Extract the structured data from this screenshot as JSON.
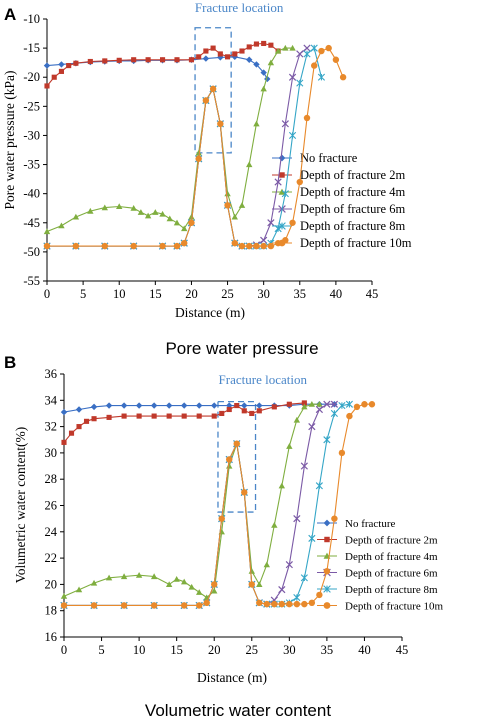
{
  "chart_data": [
    {
      "panel": "A",
      "type": "scatter",
      "caption": "Pore water pressure",
      "xlabel": "Distance (m)",
      "ylabel": "Pore water pressure (kPa)",
      "xlim": [
        0,
        45
      ],
      "ylim": [
        -55,
        -10
      ],
      "xticks": [
        0,
        5,
        10,
        15,
        20,
        25,
        30,
        35,
        40,
        45
      ],
      "yticks": [
        -10,
        -15,
        -20,
        -25,
        -30,
        -35,
        -40,
        -45,
        -50,
        -55
      ],
      "annotation": {
        "text": "Fracture location",
        "box_x": [
          20.5,
          25.5
        ],
        "box_y": [
          -11.5,
          -33
        ]
      },
      "legend_position": "right",
      "series": [
        {
          "name": "No fracture",
          "color": "#3a6fc4",
          "marker": "diamond",
          "x": [
            0,
            2,
            4,
            6,
            8,
            10,
            12,
            14,
            16,
            18,
            20,
            22,
            24,
            26,
            28,
            29,
            30,
            30.5
          ],
          "y": [
            -18,
            -17.8,
            -17.6,
            -17.4,
            -17.3,
            -17.2,
            -17.2,
            -17.1,
            -17.1,
            -17.1,
            -17.0,
            -16.8,
            -16.6,
            -16.5,
            -17.0,
            -17.8,
            -19.2,
            -20.3
          ]
        },
        {
          "name": "Depth of fracture 2m",
          "color": "#c0392b",
          "marker": "square",
          "x": [
            0,
            1,
            2,
            3,
            4,
            6,
            8,
            10,
            12,
            14,
            16,
            18,
            20,
            21,
            22,
            23,
            24,
            25,
            26,
            27,
            28,
            29,
            30,
            31,
            32
          ],
          "y": [
            -21.5,
            -20,
            -19,
            -18,
            -17.6,
            -17.3,
            -17.2,
            -17.1,
            -17.0,
            -17.0,
            -17.0,
            -17.0,
            -17.0,
            -16.5,
            -15.5,
            -15.0,
            -16.0,
            -16.5,
            -16.0,
            -15.5,
            -14.8,
            -14.3,
            -14.2,
            -14.5,
            -15.5
          ]
        },
        {
          "name": "Depth of fracture 4m",
          "color": "#7fae3f",
          "marker": "triangle",
          "x": [
            0,
            2,
            4,
            6,
            8,
            10,
            12,
            13,
            14,
            15,
            16,
            17,
            18,
            19,
            20,
            21,
            22,
            23,
            24,
            25,
            26,
            27,
            28,
            29,
            30,
            31,
            32,
            33,
            34
          ],
          "y": [
            -46.5,
            -45.5,
            -44,
            -43,
            -42.4,
            -42.2,
            -42.5,
            -43.2,
            -43.8,
            -43.2,
            -43.5,
            -44.3,
            -45,
            -46,
            -44,
            -33,
            -24,
            -22,
            -28,
            -40,
            -44,
            -42,
            -35,
            -28,
            -22,
            -17.5,
            -15.5,
            -15,
            -15
          ]
        },
        {
          "name": "Depth of fracture 6m",
          "color": "#7b5aa6",
          "marker": "x",
          "x": [
            0,
            4,
            8,
            12,
            16,
            18,
            19,
            20,
            21,
            22,
            23,
            24,
            25,
            26,
            27,
            28,
            29,
            30,
            31,
            32,
            33,
            34,
            35,
            36
          ],
          "y": [
            -49,
            -49,
            -49,
            -49,
            -49,
            -49,
            -48.5,
            -45,
            -34,
            -24,
            -22,
            -28,
            -42,
            -48.5,
            -49,
            -49,
            -48.8,
            -48,
            -45,
            -38,
            -28,
            -20,
            -16,
            -15
          ]
        },
        {
          "name": "Depth of fracture 8m",
          "color": "#35a6c7",
          "marker": "star",
          "x": [
            0,
            4,
            8,
            12,
            16,
            18,
            19,
            20,
            21,
            22,
            23,
            24,
            25,
            26,
            27,
            28,
            29,
            30,
            31,
            32,
            33,
            34,
            35,
            36,
            37,
            38
          ],
          "y": [
            -49,
            -49,
            -49,
            -49,
            -49,
            -49,
            -48.5,
            -45,
            -34,
            -24,
            -22,
            -28,
            -42,
            -48.5,
            -49,
            -49,
            -49,
            -49,
            -48.5,
            -46,
            -40,
            -30,
            -21,
            -16,
            -15,
            -20
          ]
        },
        {
          "name": "Depth of fracture 10m",
          "color": "#e8892b",
          "marker": "circle",
          "x": [
            0,
            4,
            8,
            12,
            16,
            18,
            19,
            20,
            21,
            22,
            23,
            24,
            25,
            26,
            27,
            28,
            29,
            30,
            31,
            32,
            33,
            34,
            35,
            36,
            37,
            38,
            39,
            40,
            41
          ],
          "y": [
            -49,
            -49,
            -49,
            -49,
            -49,
            -49,
            -48.5,
            -45,
            -34,
            -24,
            -22,
            -28,
            -42,
            -48.5,
            -49,
            -49,
            -49,
            -49,
            -49,
            -48.5,
            -48,
            -45,
            -38,
            -27,
            -18,
            -15.5,
            -15,
            -17,
            -20
          ]
        }
      ]
    },
    {
      "panel": "B",
      "type": "scatter",
      "caption": "Volumetric water content",
      "xlabel": "Distance (m)",
      "ylabel": "Volumetric water content(%)",
      "xlim": [
        0,
        45
      ],
      "ylim": [
        16,
        36
      ],
      "xticks": [
        0,
        5,
        10,
        15,
        20,
        25,
        30,
        35,
        40,
        45
      ],
      "yticks": [
        36,
        34,
        32,
        30,
        28,
        26,
        24,
        22,
        20,
        18,
        16
      ],
      "annotation": {
        "text": "Fracture location",
        "box_x": [
          20.5,
          25.5
        ],
        "box_y": [
          33.9,
          25.5
        ]
      },
      "legend_position": "right",
      "series": [
        {
          "name": "No fracture",
          "color": "#3a6fc4",
          "marker": "diamond",
          "x": [
            0,
            2,
            4,
            6,
            8,
            10,
            12,
            14,
            16,
            18,
            20,
            22,
            24,
            26,
            28,
            30,
            32,
            34,
            36
          ],
          "y": [
            33.1,
            33.3,
            33.5,
            33.6,
            33.6,
            33.6,
            33.6,
            33.6,
            33.6,
            33.6,
            33.6,
            33.6,
            33.6,
            33.6,
            33.6,
            33.6,
            33.7,
            33.7,
            33.7
          ]
        },
        {
          "name": "Depth of fracture 2m",
          "color": "#c0392b",
          "marker": "square",
          "x": [
            0,
            1,
            2,
            3,
            4,
            6,
            8,
            10,
            12,
            14,
            16,
            18,
            20,
            21,
            22,
            23,
            24,
            25,
            26,
            28,
            30,
            32
          ],
          "y": [
            30.8,
            31.5,
            32.0,
            32.4,
            32.6,
            32.7,
            32.8,
            32.8,
            32.8,
            32.8,
            32.8,
            32.8,
            32.8,
            33.0,
            33.3,
            33.6,
            33.2,
            33.0,
            33.2,
            33.5,
            33.7,
            33.8
          ]
        },
        {
          "name": "Depth of fracture 4m",
          "color": "#7fae3f",
          "marker": "triangle",
          "x": [
            0,
            2,
            4,
            6,
            8,
            10,
            12,
            14,
            15,
            16,
            17,
            18,
            19,
            20,
            21,
            22,
            23,
            24,
            25,
            26,
            27,
            28,
            29,
            30,
            31,
            32,
            33,
            34
          ],
          "y": [
            19.1,
            19.6,
            20.1,
            20.5,
            20.6,
            20.7,
            20.6,
            20.0,
            20.4,
            20.2,
            19.8,
            19.4,
            19.0,
            19.5,
            24,
            29,
            30.7,
            27,
            21,
            20,
            21.5,
            24.5,
            27.5,
            30.5,
            32.5,
            33.5,
            33.7,
            33.7
          ]
        },
        {
          "name": "Depth of fracture 6m",
          "color": "#7b5aa6",
          "marker": "x",
          "x": [
            0,
            4,
            8,
            12,
            16,
            18,
            19,
            20,
            21,
            22,
            23,
            24,
            25,
            26,
            27,
            28,
            29,
            30,
            31,
            32,
            33,
            34,
            35,
            36
          ],
          "y": [
            18.4,
            18.4,
            18.4,
            18.4,
            18.4,
            18.4,
            18.6,
            20,
            25,
            29.5,
            30.7,
            27,
            20,
            18.6,
            18.5,
            18.8,
            19.6,
            21.5,
            25,
            29,
            32,
            33.3,
            33.7,
            33.7
          ]
        },
        {
          "name": "Depth of fracture 8m",
          "color": "#35a6c7",
          "marker": "star",
          "x": [
            0,
            4,
            8,
            12,
            16,
            18,
            19,
            20,
            21,
            22,
            23,
            24,
            25,
            26,
            27,
            28,
            29,
            30,
            31,
            32,
            33,
            34,
            35,
            36,
            37,
            38
          ],
          "y": [
            18.4,
            18.4,
            18.4,
            18.4,
            18.4,
            18.4,
            18.6,
            20,
            25,
            29.5,
            30.7,
            27,
            20,
            18.6,
            18.5,
            18.5,
            18.5,
            18.6,
            19,
            20.5,
            23.5,
            27.5,
            31,
            33,
            33.6,
            33.7
          ]
        },
        {
          "name": "Depth of fracture 10m",
          "color": "#e8892b",
          "marker": "circle",
          "x": [
            0,
            4,
            8,
            12,
            16,
            18,
            19,
            20,
            21,
            22,
            23,
            24,
            25,
            26,
            27,
            28,
            29,
            30,
            31,
            32,
            33,
            34,
            35,
            36,
            37,
            38,
            39,
            40,
            41
          ],
          "y": [
            18.4,
            18.4,
            18.4,
            18.4,
            18.4,
            18.4,
            18.6,
            20,
            25,
            29.5,
            30.7,
            27,
            20,
            18.6,
            18.5,
            18.5,
            18.5,
            18.5,
            18.5,
            18.5,
            18.6,
            19.2,
            21,
            25,
            30,
            32.8,
            33.5,
            33.7,
            33.7
          ]
        }
      ]
    }
  ]
}
